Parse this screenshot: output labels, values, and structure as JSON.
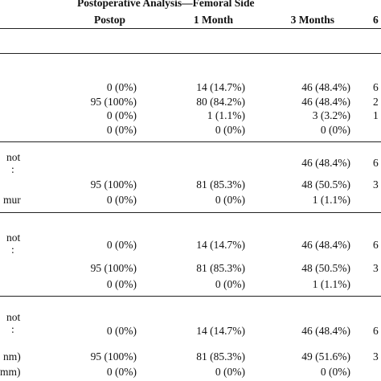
{
  "table": {
    "title": "Postoperative Analysis—Femoral Side",
    "headers": [
      "Postop",
      "1 Month",
      "3 Months",
      "6"
    ],
    "groups": [
      {
        "label_lines": [],
        "rows": [
          {
            "label": "",
            "cells": [
              "0 (0%)",
              "14 (14.7%)",
              "46 (48.4%)",
              "6"
            ]
          },
          {
            "label": "",
            "cells": [
              "95 (100%)",
              "80 (84.2%)",
              "46 (48.4%)",
              "2"
            ]
          },
          {
            "label": "",
            "cells": [
              "0 (0%)",
              "1 (1.1%)",
              "3 (3.2%)",
              "1"
            ]
          },
          {
            "label": "",
            "cells": [
              "0 (0%)",
              "0 (0%)",
              "0 (0%)",
              ""
            ]
          }
        ]
      },
      {
        "label_lines": [
          "not",
          ":"
        ],
        "rows": [
          {
            "label": "",
            "cells": [
              "95 (100%)",
              "81 (85.3%)",
              "48 (50.5%)",
              "3"
            ]
          },
          {
            "label": "mur",
            "cells": [
              "0 (0%)",
              "0 (0%)",
              "1 (1.1%)",
              ""
            ]
          }
        ],
        "top_row": {
          "cells": [
            "",
            "",
            "46 (48.4%)",
            "6"
          ]
        }
      },
      {
        "label_lines": [
          "not",
          ":"
        ],
        "rows": [
          {
            "label": "",
            "cells": [
              "0 (0%)",
              "14 (14.7%)",
              "46 (48.4%)",
              "6"
            ]
          },
          {
            "label": "",
            "cells": [
              "95 (100%)",
              "81 (85.3%)",
              "48 (50.5%)",
              "3"
            ]
          },
          {
            "label": "",
            "cells": [
              "0 (0%)",
              "0 (0%)",
              "1 (1.1%)",
              ""
            ]
          }
        ]
      },
      {
        "label_lines": [
          "not",
          ":"
        ],
        "rows": [
          {
            "label": "",
            "cells": [
              "0 (0%)",
              "14 (14.7%)",
              "46 (48.4%)",
              "6"
            ]
          },
          {
            "label": "nm)",
            "cells": [
              "95 (100%)",
              "81 (85.3%)",
              "49 (51.6%)",
              "3"
            ]
          },
          {
            "label": "mm)",
            "cells": [
              "0 (0%)",
              "0 (0%)",
              "0 (0%)",
              ""
            ]
          }
        ]
      }
    ]
  }
}
